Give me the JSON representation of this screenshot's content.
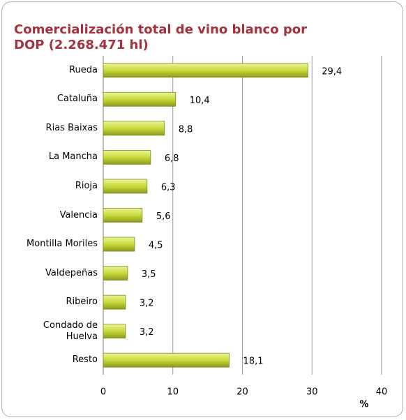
{
  "chart_data": {
    "type": "barh",
    "title": "Comercialización total de vino blanco por DOP (2.268.471 hl)",
    "categories": [
      "Rueda",
      "Cataluña",
      "Rias Baixas",
      "La Mancha",
      "Rioja",
      "Valencia",
      "Montilla Moriles",
      "Valdepeñas",
      "Ribeiro",
      "Condado de Huelva",
      "Resto"
    ],
    "values": [
      29.4,
      10.4,
      8.8,
      6.8,
      6.3,
      5.6,
      4.5,
      3.5,
      3.2,
      3.2,
      18.1
    ],
    "value_labels": [
      "29,4",
      "10,4",
      "8,8",
      "6,8",
      "6,3",
      "5,6",
      "4,5",
      "3,5",
      "3,2",
      "3,2",
      "18,1"
    ],
    "color": "#c8d93a",
    "xlim": [
      0,
      40
    ],
    "xticks": [
      0,
      10,
      20,
      30,
      40
    ],
    "xlabel": "%",
    "grid": true
  }
}
